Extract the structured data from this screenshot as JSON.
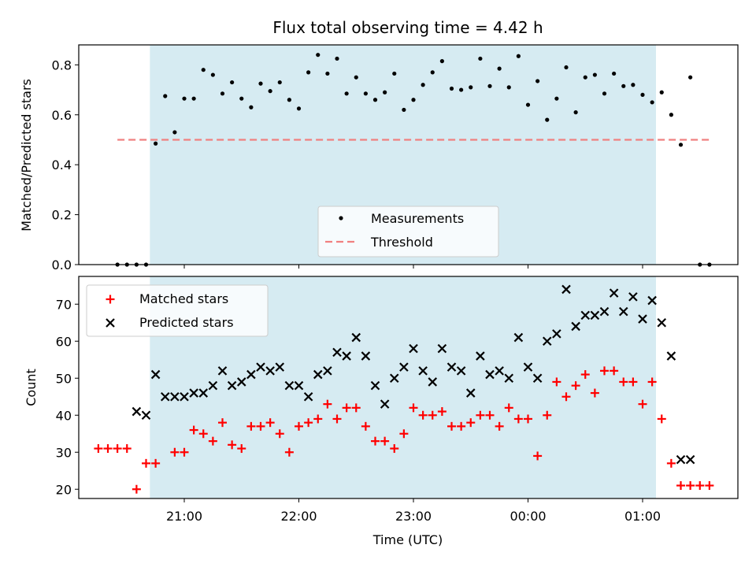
{
  "chart_data": [
    {
      "type": "scatter",
      "title": "Flux total observing time = 4.42 h",
      "xlabel": "",
      "ylabel": "Matched/Predicted stars",
      "ylim": [
        0,
        0.88
      ],
      "yticks": [
        "0.0",
        "0.2",
        "0.4",
        "0.6",
        "0.8"
      ],
      "shaded_span": [
        "20:42",
        "01:07"
      ],
      "shade_color": "#add8e6",
      "threshold": 0.5,
      "threshold_span": [
        "20:25",
        "01:35"
      ],
      "legend_position": "lower center",
      "series": [
        {
          "name": "Measurements",
          "color": "#000000",
          "marker": "dot",
          "x": [
            "20:25",
            "20:30",
            "20:35",
            "20:40",
            "20:45",
            "20:50",
            "20:55",
            "21:00",
            "21:05",
            "21:10",
            "21:15",
            "21:20",
            "21:25",
            "21:30",
            "21:35",
            "21:40",
            "21:45",
            "21:50",
            "21:55",
            "22:00",
            "22:05",
            "22:10",
            "22:15",
            "22:20",
            "22:25",
            "22:30",
            "22:35",
            "22:40",
            "22:45",
            "22:50",
            "22:55",
            "23:00",
            "23:05",
            "23:10",
            "23:15",
            "23:20",
            "23:25",
            "23:30",
            "23:35",
            "23:40",
            "23:45",
            "23:50",
            "23:55",
            "00:00",
            "00:05",
            "00:10",
            "00:15",
            "00:20",
            "00:25",
            "00:30",
            "00:35",
            "00:40",
            "00:45",
            "00:50",
            "00:55",
            "01:00",
            "01:05",
            "01:10",
            "01:15",
            "01:20",
            "01:25",
            "01:30",
            "01:35"
          ],
          "y": [
            0.0,
            0.0,
            0.0,
            0.0,
            0.485,
            0.675,
            0.53,
            0.665,
            0.665,
            0.78,
            0.76,
            0.685,
            0.73,
            0.665,
            0.63,
            0.725,
            0.695,
            0.73,
            0.66,
            0.625,
            0.77,
            0.84,
            0.765,
            0.825,
            0.685,
            0.75,
            0.685,
            0.66,
            0.69,
            0.765,
            0.62,
            0.66,
            0.72,
            0.77,
            0.815,
            0.705,
            0.7,
            0.71,
            0.825,
            0.715,
            0.785,
            0.71,
            0.835,
            0.64,
            0.735,
            0.58,
            0.665,
            0.79,
            0.61,
            0.75,
            0.76,
            0.685,
            0.765,
            0.715,
            0.72,
            0.68,
            0.65,
            0.69,
            0.6,
            0.48,
            0.75,
            0.0,
            0.0
          ]
        },
        {
          "name": "Threshold",
          "color": "#f08080",
          "style": "dashed"
        }
      ]
    },
    {
      "type": "scatter",
      "title": "",
      "xlabel": "Time (UTC)",
      "ylabel": "Count",
      "ylim": [
        17.5,
        77.5
      ],
      "yticks": [
        "20",
        "30",
        "40",
        "50",
        "60",
        "70"
      ],
      "xticks": [
        "21:00",
        "22:00",
        "23:00",
        "00:00",
        "01:00"
      ],
      "shaded_span": [
        "20:42",
        "01:07"
      ],
      "shade_color": "#add8e6",
      "legend_position": "upper left",
      "series": [
        {
          "name": "Matched stars",
          "color": "#ff0000",
          "marker": "plus",
          "x": [
            "20:15",
            "20:20",
            "20:25",
            "20:30",
            "20:35",
            "20:40",
            "20:45",
            "20:55",
            "21:00",
            "21:05",
            "21:10",
            "21:15",
            "21:20",
            "21:25",
            "21:30",
            "21:35",
            "21:40",
            "21:45",
            "21:50",
            "21:55",
            "22:00",
            "22:05",
            "22:10",
            "22:15",
            "22:20",
            "22:25",
            "22:30",
            "22:35",
            "22:40",
            "22:45",
            "22:50",
            "22:55",
            "23:00",
            "23:05",
            "23:10",
            "23:15",
            "23:20",
            "23:25",
            "23:30",
            "23:35",
            "23:40",
            "23:45",
            "23:50",
            "23:55",
            "00:00",
            "00:05",
            "00:10",
            "00:15",
            "00:20",
            "00:25",
            "00:30",
            "00:35",
            "00:40",
            "00:45",
            "00:50",
            "00:55",
            "01:00",
            "01:05",
            "01:10",
            "01:15",
            "01:20",
            "01:25",
            "01:30",
            "01:35"
          ],
          "y": [
            31,
            31,
            31,
            31,
            20,
            27,
            27,
            30,
            30,
            36,
            35,
            33,
            38,
            32,
            31,
            37,
            37,
            38,
            35,
            30,
            37,
            38,
            39,
            43,
            39,
            42,
            42,
            37,
            33,
            33,
            31,
            35,
            42,
            40,
            40,
            41,
            37,
            37,
            38,
            40,
            40,
            37,
            42,
            39,
            39,
            29,
            40,
            49,
            45,
            48,
            51,
            46,
            52,
            52,
            49,
            49,
            43,
            49,
            39,
            27,
            21,
            21,
            21,
            21
          ]
        },
        {
          "name": "Predicted stars",
          "color": "#000000",
          "marker": "x",
          "x": [
            "20:35",
            "20:40",
            "20:45",
            "20:50",
            "20:55",
            "21:00",
            "21:05",
            "21:10",
            "21:15",
            "21:20",
            "21:25",
            "21:30",
            "21:35",
            "21:40",
            "21:45",
            "21:50",
            "21:55",
            "22:00",
            "22:05",
            "22:10",
            "22:15",
            "22:20",
            "22:25",
            "22:30",
            "22:35",
            "22:40",
            "22:45",
            "22:50",
            "22:55",
            "23:00",
            "23:05",
            "23:10",
            "23:15",
            "23:20",
            "23:25",
            "23:30",
            "23:35",
            "23:40",
            "23:45",
            "23:50",
            "23:55",
            "00:00",
            "00:05",
            "00:10",
            "00:15",
            "00:20",
            "00:25",
            "00:30",
            "00:35",
            "00:40",
            "00:45",
            "00:50",
            "00:55",
            "01:00",
            "01:05",
            "01:10",
            "01:15",
            "01:20",
            "01:25"
          ],
          "y": [
            41,
            40,
            51,
            45,
            45,
            45,
            46,
            46,
            48,
            52,
            48,
            49,
            51,
            53,
            52,
            53,
            48,
            48,
            45,
            51,
            52,
            57,
            56,
            61,
            56,
            48,
            43,
            50,
            53,
            58,
            52,
            49,
            58,
            53,
            52,
            46,
            56,
            51,
            52,
            50,
            61,
            53,
            50,
            60,
            62,
            74,
            64,
            67,
            67,
            68,
            73,
            68,
            72,
            66,
            71,
            65,
            56,
            28,
            28
          ]
        }
      ]
    }
  ]
}
